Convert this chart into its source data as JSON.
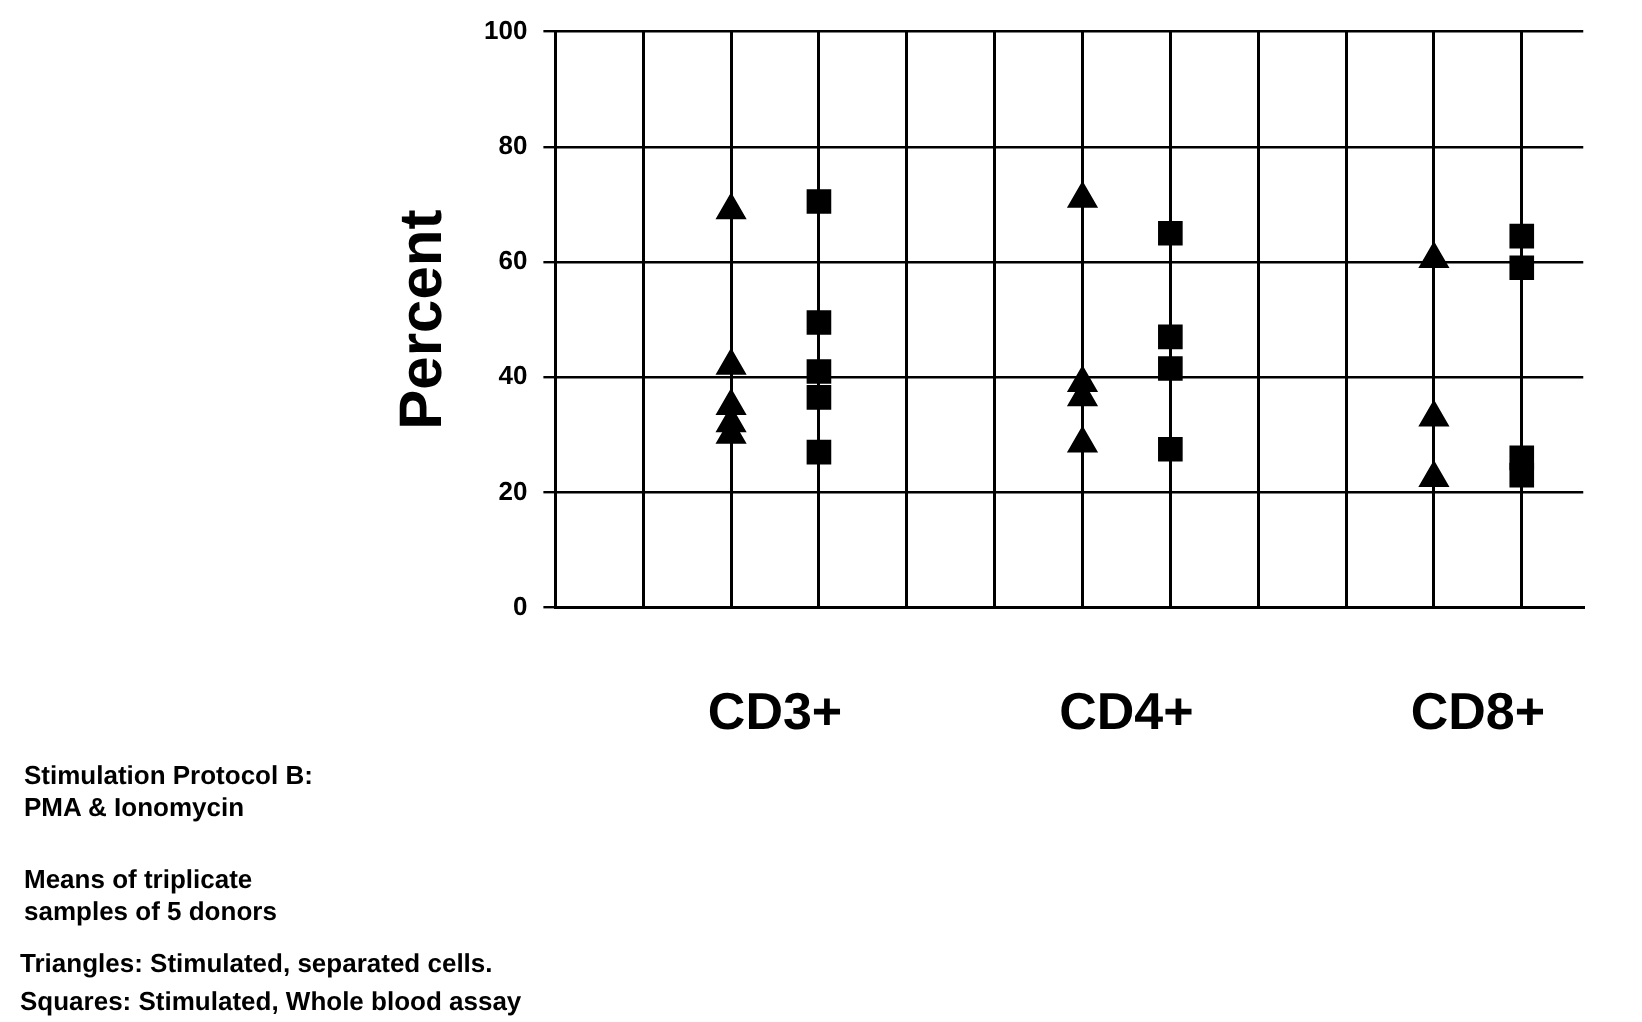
{
  "chart_data": {
    "type": "scatter",
    "ylabel": "Percent",
    "categories": [
      "CD3+",
      "CD4+",
      "CD8+"
    ],
    "ylim": [
      0,
      100
    ],
    "yticks": [
      0,
      20,
      40,
      60,
      80,
      100
    ],
    "grid": true,
    "legend": false,
    "series": [
      {
        "color": "#000000",
        "marker": "triangle",
        "x": [
          "CD3+",
          "CD3+",
          "CD3+",
          "CD3+",
          "CD3+",
          "CD4+",
          "CD4+",
          "CD4+",
          "CD4+",
          "CD4+",
          "CD8+",
          "CD8+",
          "CD8+"
        ],
        "values": [
          69,
          42,
          35,
          32,
          30,
          71,
          39,
          null,
          36.5,
          28.5,
          60.5,
          33,
          22.5
        ]
      },
      {
        "color": "#000000",
        "marker": "square",
        "x": [
          "CD3+",
          "CD3+",
          "CD3+",
          "CD3+",
          "CD3+",
          "CD4+",
          "CD4+",
          "CD4+",
          "CD4+",
          "CD8+",
          "CD8+",
          "CD8+",
          "CD8+"
        ],
        "values": [
          70.5,
          49.5,
          41,
          36.5,
          27,
          65,
          47,
          41.5,
          27.5,
          64.5,
          59,
          26,
          23
        ]
      }
    ],
    "annotations": [
      "Stimulation Protocol B:\nPMA & Ionomycin",
      "Means of triplicate\nsamples of 5 donors",
      "Triangles: Stimulated, separated cells.",
      "Squares: Stimulated, Whole blood assay"
    ]
  }
}
